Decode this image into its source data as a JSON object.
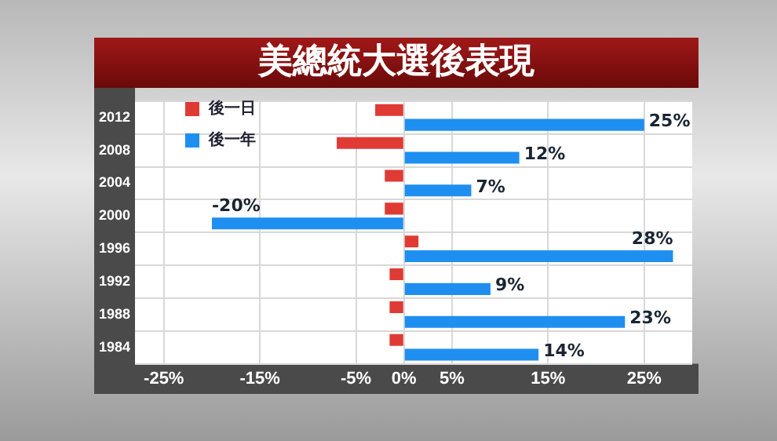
{
  "chart_data": {
    "type": "bar",
    "orientation": "horizontal",
    "title": "美總統大選後表現",
    "categories": [
      "2012",
      "2008",
      "2004",
      "2000",
      "1996",
      "1992",
      "1988",
      "1984"
    ],
    "series": [
      {
        "name": "後一日",
        "color": "#e03a35",
        "values": [
          -3,
          -7,
          -2,
          -2,
          1.5,
          -1.5,
          -1.5,
          -1.5
        ]
      },
      {
        "name": "後一年",
        "color": "#1e8ff0",
        "values": [
          25,
          12,
          7,
          -20,
          28,
          9,
          23,
          14
        ],
        "value_labels": [
          "25%",
          "12%",
          "7%",
          "-20%",
          "28%",
          "9%",
          "23%",
          "14%"
        ]
      }
    ],
    "xlim": [
      -28,
      30
    ],
    "xticks": [
      {
        "value": -25,
        "label": "-25%"
      },
      {
        "value": -15,
        "label": "-15%"
      },
      {
        "value": -5,
        "label": "-5%"
      },
      {
        "value": 0,
        "label": "0%"
      },
      {
        "value": 5,
        "label": "5%"
      },
      {
        "value": 15,
        "label": "15%"
      },
      {
        "value": 25,
        "label": "25%"
      }
    ],
    "grid": true,
    "legend": "top left"
  }
}
